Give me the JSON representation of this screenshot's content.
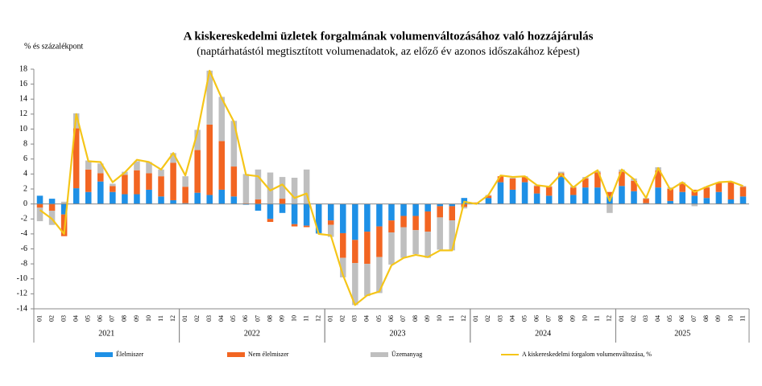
{
  "chart_data": {
    "type": "bar",
    "stacked": true,
    "title": "A kiskereskedelmi üzletek forgalmának volumenváltozásához való hozzájárulás",
    "subtitle": "(naptárhatástól megtisztított volumenadatok, az előző év azonos időszakához képest)",
    "y_label": "% és százalékpont",
    "groups": [
      {
        "label": "2021",
        "categories": [
          "01",
          "02",
          "03",
          "04",
          "05",
          "06",
          "07",
          "08",
          "09",
          "10",
          "11",
          "12"
        ]
      },
      {
        "label": "2022",
        "categories": [
          "01",
          "02",
          "03",
          "04",
          "05",
          "06",
          "07",
          "08",
          "09",
          "10",
          "11",
          "12"
        ]
      },
      {
        "label": "2023",
        "categories": [
          "01",
          "02",
          "03",
          "04",
          "05",
          "06",
          "07",
          "08",
          "09",
          "10",
          "11",
          "12"
        ]
      },
      {
        "label": "2024",
        "categories": [
          "01",
          "02",
          "03",
          "04",
          "05",
          "06",
          "07",
          "08",
          "09",
          "10",
          "11",
          "12"
        ]
      },
      {
        "label": "2025",
        "categories": [
          "01",
          "02",
          "03",
          "04",
          "05",
          "06",
          "07",
          "08",
          "09",
          "10",
          "11"
        ]
      }
    ],
    "series": [
      {
        "name": "Élelmiszer",
        "type": "bar",
        "color": "#1e90e6",
        "values": [
          1.1,
          0.7,
          -1.4,
          2.1,
          1.6,
          3.0,
          1.6,
          1.3,
          1.3,
          1.9,
          1.0,
          0.5,
          0.1,
          1.5,
          1.2,
          1.9,
          1.0,
          -0.1,
          -0.9,
          -2.0,
          -1.2,
          -2.7,
          -2.9,
          -3.9,
          -2.2,
          -3.9,
          -4.8,
          -3.7,
          -3.0,
          -2.2,
          -1.6,
          -1.6,
          -1.0,
          -0.3,
          -0.3,
          0.8,
          0.1,
          0.8,
          2.9,
          1.9,
          2.9,
          1.4,
          1.1,
          3.6,
          1.2,
          2.2,
          2.2,
          1.0,
          2.4,
          1.7,
          0.1,
          2.2,
          0.4,
          1.6,
          1.1,
          0.8,
          1.6,
          0.6,
          1.0
        ]
      },
      {
        "name": "Nem élelmiszer",
        "type": "bar",
        "color": "#f26522",
        "values": [
          -0.5,
          -0.9,
          -2.9,
          8.0,
          3.0,
          1.1,
          0.8,
          2.6,
          3.2,
          2.2,
          2.7,
          5.0,
          2.2,
          5.7,
          9.4,
          6.5,
          4.0,
          0.1,
          0.6,
          -0.4,
          0.7,
          -0.3,
          -0.2,
          0.0,
          -0.6,
          -3.3,
          -3.1,
          -4.3,
          -4.1,
          -1.6,
          -1.5,
          -1.9,
          -2.7,
          -1.5,
          -1.9,
          -0.4,
          0.1,
          0.3,
          0.8,
          1.5,
          0.7,
          1.0,
          1.2,
          0.5,
          1.0,
          1.2,
          2.0,
          0.6,
          1.9,
          1.4,
          0.6,
          2.3,
          1.6,
          1.1,
          0.8,
          1.4,
          1.2,
          2.3,
          1.3
        ]
      },
      {
        "name": "Üzemanyag",
        "type": "bar",
        "color": "#bfbfbf",
        "values": [
          -1.8,
          -1.9,
          0.3,
          2.0,
          1.2,
          1.3,
          0.3,
          0.4,
          1.2,
          1.5,
          0.9,
          1.3,
          1.4,
          2.7,
          7.2,
          5.9,
          6.1,
          3.9,
          4.0,
          4.2,
          2.9,
          3.5,
          4.6,
          -0.1,
          -1.6,
          -2.6,
          -5.6,
          -4.3,
          -4.8,
          -4.3,
          -4.1,
          -3.2,
          -3.5,
          -4.3,
          -4.0,
          -0.2,
          0.0,
          0.1,
          0.0,
          0.1,
          0.1,
          0.1,
          0.1,
          0.2,
          0.2,
          0.2,
          0.2,
          -1.2,
          0.3,
          0.3,
          0.1,
          0.4,
          0.2,
          0.2,
          -0.3,
          0.1,
          0.1,
          0.1,
          0.1
        ]
      },
      {
        "name": "A kiskereskedelmi forgalom volumenváltozása, %",
        "type": "line",
        "color": "#f5c518",
        "values": [
          -0.8,
          -2.0,
          -4.0,
          12.0,
          5.7,
          5.6,
          2.9,
          4.2,
          5.9,
          5.6,
          4.6,
          6.8,
          3.8,
          9.6,
          17.8,
          14.1,
          11.0,
          3.9,
          3.7,
          1.8,
          2.6,
          0.8,
          1.4,
          -4.0,
          -4.2,
          -9.5,
          -13.5,
          -12.2,
          -11.7,
          -8.2,
          -7.2,
          -6.8,
          -7.1,
          -6.2,
          -6.2,
          0.3,
          0.0,
          1.2,
          3.8,
          3.6,
          3.7,
          2.5,
          2.3,
          4.0,
          2.2,
          3.5,
          4.5,
          0.4,
          4.6,
          3.3,
          0.8,
          4.8,
          1.9,
          2.9,
          1.6,
          2.3,
          2.9,
          3.0,
          2.4
        ]
      }
    ],
    "ylim": [
      -14,
      18
    ],
    "yticks": [
      -14,
      -12,
      -10,
      -8,
      -6,
      -4,
      -2,
      0,
      2,
      4,
      6,
      8,
      10,
      12,
      14,
      16,
      18
    ],
    "grid": false
  }
}
